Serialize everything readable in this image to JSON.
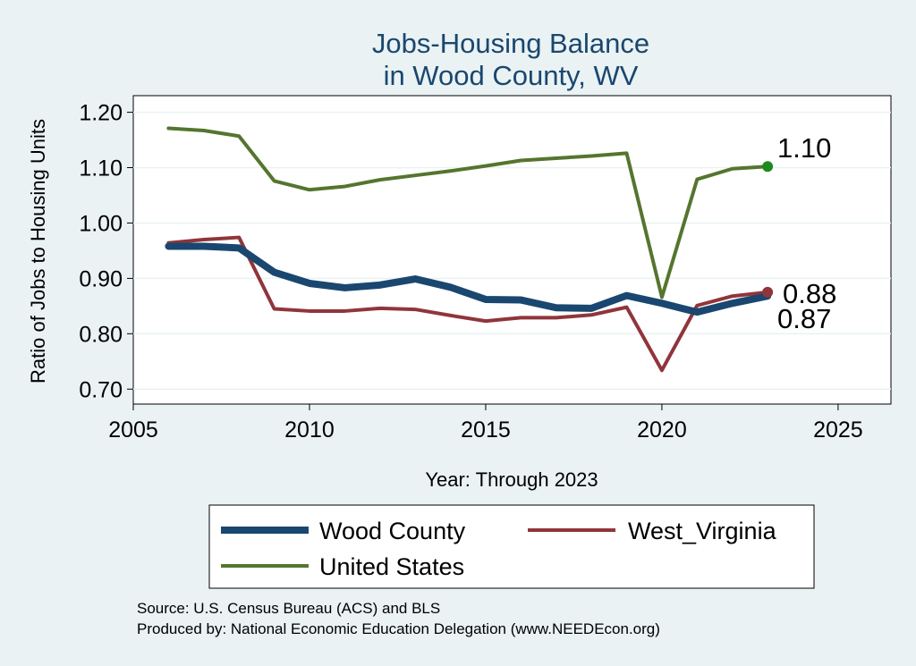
{
  "chart_data": {
    "type": "line",
    "title": [
      "Jobs-Housing Balance",
      "in Wood County, WV"
    ],
    "xlabel": "Year: Through 2023",
    "ylabel": "Ratio of Jobs to Housing Units",
    "xlim": [
      2005,
      2026.5
    ],
    "ylim": [
      0.673,
      1.23
    ],
    "xticks": [
      2005,
      2010,
      2015,
      2020,
      2025
    ],
    "yticks": [
      0.7,
      0.8,
      0.9,
      1.0,
      1.1,
      1.2
    ],
    "ytick_labels": [
      "0.70",
      "0.80",
      "0.90",
      "1.00",
      "1.10",
      "1.20"
    ],
    "grid": true,
    "x": [
      2006,
      2007,
      2008,
      2009,
      2010,
      2011,
      2012,
      2013,
      2014,
      2015,
      2016,
      2017,
      2018,
      2019,
      2020,
      2021,
      2022,
      2023
    ],
    "series": [
      {
        "name": "Wood County",
        "color": "#1a476f",
        "values": [
          0.958,
          0.958,
          0.955,
          0.911,
          0.891,
          0.883,
          0.888,
          0.899,
          0.884,
          0.862,
          0.861,
          0.847,
          0.846,
          0.869,
          0.855,
          0.839,
          0.855,
          0.868
        ],
        "end_label": "0.87"
      },
      {
        "name": "West_Virginia",
        "color": "#90353b",
        "values": [
          0.964,
          0.97,
          0.974,
          0.845,
          0.841,
          0.841,
          0.846,
          0.844,
          0.833,
          0.823,
          0.829,
          0.829,
          0.834,
          0.848,
          0.734,
          0.851,
          0.868,
          0.875
        ],
        "end_label": "0.88",
        "end_marker_color": "#90353b"
      },
      {
        "name": "United States",
        "color": "#55752f",
        "values": [
          1.171,
          1.167,
          1.157,
          1.076,
          1.06,
          1.066,
          1.078,
          1.086,
          1.094,
          1.103,
          1.113,
          1.117,
          1.121,
          1.126,
          0.866,
          1.079,
          1.098,
          1.102
        ],
        "end_label": "1.10",
        "end_marker_color": "#1e8a1e"
      }
    ],
    "legend": {
      "position": "bottom",
      "entries": [
        "Wood County",
        "West_Virginia",
        "United States"
      ]
    },
    "notes": [
      "Source: U.S. Census Bureau (ACS) and BLS",
      "Produced by: National Economic Education Delegation (www.NEEDEcon.org)"
    ]
  }
}
